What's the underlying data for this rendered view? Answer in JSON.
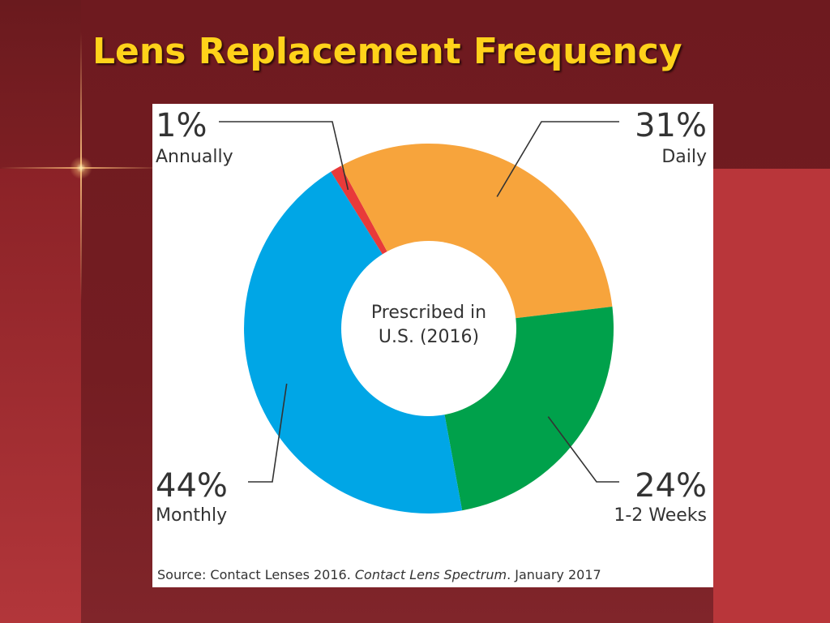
{
  "slide": {
    "title": "Lens Replacement Frequency"
  },
  "chart_data": {
    "type": "pie",
    "variant": "donut",
    "center_label": [
      "Prescribed in",
      "U.S. (2016)"
    ],
    "slices": [
      {
        "label": "Annually",
        "value": 1,
        "value_label": "1%",
        "color": "#e83a3a"
      },
      {
        "label": "Daily",
        "value": 31,
        "value_label": "31%",
        "color": "#f7a43c"
      },
      {
        "label": "1-2 Weeks",
        "value": 24,
        "value_label": "24%",
        "color": "#00a14b"
      },
      {
        "label": "Monthly",
        "value": 44,
        "value_label": "44%",
        "color": "#00a6e6"
      }
    ],
    "source": {
      "prefix": "Source: Contact Lenses 2016. ",
      "italic": "Contact Lens Spectrum",
      "suffix": ". January 2017"
    }
  }
}
